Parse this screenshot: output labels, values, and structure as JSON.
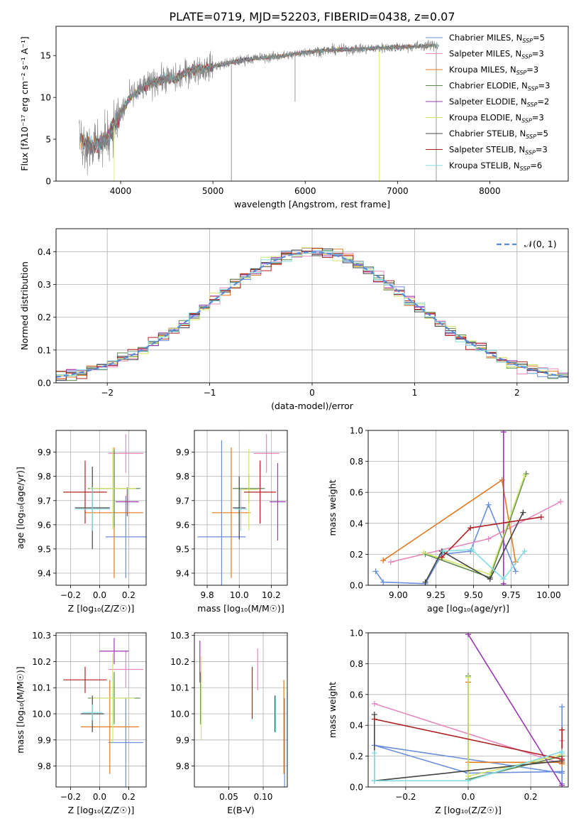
{
  "figure_title": "PLATE=0719, MJD=52203, FIBERID=0438, z=0.07",
  "models": [
    {
      "name": "Chabrier MILES",
      "nssp": "5",
      "color": "#6a8fdd"
    },
    {
      "name": "Salpeter MILES",
      "nssp": "3",
      "color": "#e589bf"
    },
    {
      "name": "Kroupa MILES",
      "nssp": "3",
      "color": "#e07b22"
    },
    {
      "name": "Chabrier ELODIE",
      "nssp": "3",
      "color": "#5e8a4f"
    },
    {
      "name": "Salpeter ELODIE",
      "nssp": "2",
      "color": "#9a3aae"
    },
    {
      "name": "Kroupa ELODIE",
      "nssp": "3",
      "color": "#d2e66e"
    },
    {
      "name": "Chabrier STELIB",
      "nssp": "5",
      "color": "#444444"
    },
    {
      "name": "Salpeter STELIB",
      "nssp": "3",
      "color": "#b02222"
    },
    {
      "name": "Kroupa STELIB",
      "nssp": "6",
      "color": "#82dde0"
    }
  ],
  "chart_data": [
    {
      "id": "spectrum",
      "type": "line",
      "title": "",
      "xlabel": "wavelength [Angstrom, rest frame]",
      "ylabel": "Flux [fλ10⁻¹⁷ erg cm⁻² s⁻¹ A⁻¹]",
      "xlim": [
        3300,
        8850
      ],
      "ylim": [
        0,
        18.5
      ],
      "xticks": [
        4000,
        5000,
        6000,
        7000,
        8000
      ],
      "yticks": [
        0,
        5,
        10,
        15
      ],
      "grid": false,
      "legend": "top-right",
      "continuum_x": [
        3550,
        3650,
        3800,
        3900,
        4000,
        4100,
        4200,
        4300,
        4400,
        4500,
        4600,
        4700,
        4800,
        4900,
        5000,
        5200,
        5400,
        5600,
        5800,
        6000,
        6200,
        6400,
        6600,
        6800,
        7000,
        7200,
        7400,
        7600,
        7800,
        8000,
        8200,
        8400,
        8600,
        8850
      ],
      "continuum_y": [
        5.2,
        4.2,
        4.5,
        6.0,
        8.0,
        10.0,
        10.8,
        11.5,
        12.0,
        12.3,
        12.2,
        12.9,
        13.3,
        13.4,
        13.7,
        14.2,
        14.6,
        14.8,
        15.0,
        15.4,
        15.6,
        15.7,
        15.8,
        15.9,
        16.0,
        16.1,
        16.2,
        16.3,
        16.4,
        16.4,
        16.4,
        16.4,
        16.5,
        16.5
      ],
      "data_color": "#808080"
    },
    {
      "id": "residuals",
      "type": "step",
      "title": "",
      "xlabel": "(data-model)/error",
      "ylabel": "Normed distribution",
      "xlim": [
        -2.5,
        2.5
      ],
      "ylim": [
        0,
        0.47
      ],
      "xticks": [
        -2,
        -1,
        0,
        1,
        2
      ],
      "yticks": [
        0.0,
        0.1,
        0.2,
        0.3,
        0.4
      ],
      "grid": true,
      "legend": "top-right",
      "reference_label": "𝒩(0, 1)",
      "reference_color": "#5b8bd8",
      "bin_width": 0.1
    },
    {
      "id": "age-vs-Z",
      "type": "errorbar",
      "xlabel": "Z [log₁₀(Z/Z☉)]",
      "ylabel": "age  [log₁₀(age/yr)]",
      "xlim": [
        -0.3,
        0.32
      ],
      "ylim": [
        9.35,
        9.99
      ],
      "xticks": [
        -0.2,
        0.0,
        0.2
      ],
      "yticks": [
        9.4,
        9.5,
        9.6,
        9.7,
        9.8,
        9.9
      ],
      "grid": true,
      "points": [
        {
          "model": 0,
          "x": 0.18,
          "y": 9.55,
          "xerr": 0.14,
          "yerr": 0.17
        },
        {
          "model": 1,
          "x": 0.18,
          "y": 9.895,
          "xerr": 0.12,
          "yerr": 0.08
        },
        {
          "model": 2,
          "x": 0.1,
          "y": 9.65,
          "xerr": 0.2,
          "yerr": 0.27
        },
        {
          "model": 3,
          "x": 0.1,
          "y": 9.75,
          "xerr": 0.18,
          "yerr": 0.16
        },
        {
          "model": 4,
          "x": 0.19,
          "y": 9.695,
          "xerr": 0.08,
          "yerr": 0.06
        },
        {
          "model": 5,
          "x": 0.09,
          "y": 9.75,
          "xerr": 0.16,
          "yerr": 0.17
        },
        {
          "model": 6,
          "x": -0.05,
          "y": 9.67,
          "xerr": 0.12,
          "yerr": 0.17
        },
        {
          "model": 7,
          "x": -0.1,
          "y": 9.735,
          "xerr": 0.15,
          "yerr": 0.13
        },
        {
          "model": 8,
          "x": -0.05,
          "y": 9.665,
          "xerr": 0.12,
          "yerr": 0.09
        }
      ]
    },
    {
      "id": "age-vs-mass",
      "type": "errorbar",
      "xlabel": "mass [log₁₀(M/M☉)]",
      "ylabel": "",
      "xlim": [
        9.72,
        10.3
      ],
      "ylim": [
        9.35,
        9.99
      ],
      "xticks": [
        9.8,
        10.0,
        10.2
      ],
      "yticks": [
        9.4,
        9.5,
        9.6,
        9.7,
        9.8,
        9.9
      ],
      "grid": true,
      "points": [
        {
          "model": 0,
          "x": 9.89,
          "y": 9.55,
          "xerr": 0.15,
          "yerr": 0.4
        },
        {
          "model": 1,
          "x": 10.17,
          "y": 9.895,
          "xerr": 0.08,
          "yerr": 0.08
        },
        {
          "model": 2,
          "x": 9.95,
          "y": 9.65,
          "xerr": 0.12,
          "yerr": 0.27
        },
        {
          "model": 3,
          "x": 10.06,
          "y": 9.75,
          "xerr": 0.1,
          "yerr": 0.06
        },
        {
          "model": 4,
          "x": 10.24,
          "y": 9.695,
          "xerr": 0.05,
          "yerr": 0.16
        },
        {
          "model": 5,
          "x": 10.06,
          "y": 9.745,
          "xerr": 0.06,
          "yerr": 0.17
        },
        {
          "model": 6,
          "x": 10.0,
          "y": 9.67,
          "xerr": 0.04,
          "yerr": 0.13
        },
        {
          "model": 7,
          "x": 10.13,
          "y": 9.735,
          "xerr": 0.1,
          "yerr": 0.13
        },
        {
          "model": 8,
          "x": 10.01,
          "y": 9.665,
          "xerr": 0.04,
          "yerr": 0.09
        }
      ]
    },
    {
      "id": "weight-vs-age",
      "type": "line",
      "xlabel": "age  [log₁₀(age/yr)]",
      "ylabel": "mass weight",
      "xlim": [
        8.8,
        10.13
      ],
      "ylim": [
        0,
        1.0
      ],
      "xticks": [
        9.0,
        9.25,
        9.5,
        9.75,
        10.0
      ],
      "xticklabels": [
        "9.00",
        "9.25",
        "9.50",
        "9.75",
        "10.00"
      ],
      "yticks": [
        0.0,
        0.2,
        0.4,
        0.6,
        0.8,
        1.0
      ],
      "grid": true,
      "series": [
        {
          "model": 0,
          "x": [
            8.85,
            8.9,
            9.18,
            9.29,
            9.48,
            9.6,
            9.78
          ],
          "y": [
            0.09,
            0.02,
            0.01,
            0.2,
            0.22,
            0.52,
            0.09
          ]
        },
        {
          "model": 1,
          "x": [
            8.95,
            9.6,
            10.08
          ],
          "y": [
            0.15,
            0.3,
            0.54
          ]
        },
        {
          "model": 2,
          "x": [
            8.9,
            9.69,
            9.78
          ],
          "y": [
            0.16,
            0.68,
            0.15
          ]
        },
        {
          "model": 3,
          "x": [
            9.18,
            9.61,
            9.85
          ],
          "y": [
            0.2,
            0.05,
            0.72
          ]
        },
        {
          "model": 4,
          "x": [
            9.7,
            9.7
          ],
          "y": [
            0.01,
            0.99
          ]
        },
        {
          "model": 5,
          "x": [
            9.17,
            9.61,
            9.84
          ],
          "y": [
            0.21,
            0.07,
            0.71
          ]
        },
        {
          "model": 6,
          "x": [
            9.18,
            9.29,
            9.61,
            9.83
          ],
          "y": [
            0.02,
            0.22,
            0.04,
            0.47
          ]
        },
        {
          "model": 7,
          "x": [
            9.29,
            9.48,
            9.95
          ],
          "y": [
            0.18,
            0.37,
            0.44
          ]
        },
        {
          "model": 8,
          "x": [
            9.3,
            9.49,
            9.7,
            9.84
          ],
          "y": [
            0.22,
            0.23,
            0.04,
            0.22
          ]
        }
      ]
    },
    {
      "id": "mass-vs-Z",
      "type": "errorbar",
      "xlabel": "Z [log₁₀(Z/Z☉)]",
      "ylabel": "mass [log₁₀(M/M☉)]",
      "xlim": [
        -0.3,
        0.32
      ],
      "ylim": [
        9.72,
        10.31
      ],
      "xticks": [
        -0.2,
        0.0,
        0.2
      ],
      "yticks": [
        9.8,
        9.9,
        10.0,
        10.1,
        10.2,
        10.3
      ],
      "grid": true,
      "points": [
        {
          "model": 0,
          "x": 0.18,
          "y": 9.89,
          "xerr": 0.12,
          "yerr": 0.17
        },
        {
          "model": 1,
          "x": 0.18,
          "y": 10.17,
          "xerr": 0.12,
          "yerr": 0.07
        },
        {
          "model": 2,
          "x": 0.07,
          "y": 9.95,
          "xerr": 0.2,
          "yerr": 0.18
        },
        {
          "model": 3,
          "x": 0.1,
          "y": 10.06,
          "xerr": 0.18,
          "yerr": 0.1
        },
        {
          "model": 4,
          "x": 0.1,
          "y": 10.24,
          "xerr": 0.1,
          "yerr": 0.05
        },
        {
          "model": 5,
          "x": 0.09,
          "y": 10.06,
          "xerr": 0.15,
          "yerr": 0.17
        },
        {
          "model": 6,
          "x": -0.05,
          "y": 10.0,
          "xerr": 0.08,
          "yerr": 0.07
        },
        {
          "model": 7,
          "x": -0.1,
          "y": 10.13,
          "xerr": 0.15,
          "yerr": 0.05
        },
        {
          "model": 8,
          "x": -0.05,
          "y": 10.005,
          "xerr": 0.07,
          "yerr": 0.03
        }
      ]
    },
    {
      "id": "mass-vs-ebv",
      "type": "errorbar",
      "xlabel": "E(B-V)",
      "ylabel": "",
      "xlim": [
        0.0,
        0.135
      ],
      "ylim": [
        9.72,
        10.31
      ],
      "xticks": [
        0.05,
        0.1
      ],
      "xticklabels": [
        "0.05",
        "0.10"
      ],
      "yticks": [
        9.8,
        9.9,
        10.0,
        10.1,
        10.2,
        10.3
      ],
      "grid": true,
      "points": [
        {
          "model": 0,
          "x": 0.131,
          "y": 9.89,
          "xerr": 0,
          "yerr": 0.17
        },
        {
          "model": 1,
          "x": 0.092,
          "y": 10.17,
          "xerr": 0,
          "yerr": 0.08
        },
        {
          "model": 2,
          "x": 0.13,
          "y": 9.95,
          "xerr": 0,
          "yerr": 0.18
        },
        {
          "model": 3,
          "x": 0.009,
          "y": 10.06,
          "xerr": 0,
          "yerr": 0.1
        },
        {
          "model": 4,
          "x": 0.008,
          "y": 10.2,
          "xerr": 0,
          "yerr": 0.08
        },
        {
          "model": 5,
          "x": 0.01,
          "y": 10.06,
          "xerr": 0,
          "yerr": 0.16
        },
        {
          "model": 6,
          "x": 0.117,
          "y": 10.0,
          "xerr": 0,
          "yerr": 0.07
        },
        {
          "model": 7,
          "x": 0.084,
          "y": 10.08,
          "xerr": 0,
          "yerr": 0.1
        },
        {
          "model": 8,
          "x": 0.118,
          "y": 10.0,
          "xerr": 0,
          "yerr": 0.07
        }
      ]
    },
    {
      "id": "weight-vs-Z",
      "type": "line",
      "xlabel": "Z [log₁₀(Z/Z☉)]",
      "ylabel": "mass weight",
      "xlim": [
        -0.32,
        0.32
      ],
      "ylim": [
        0,
        1.0
      ],
      "xticks": [
        -0.2,
        0.0,
        0.2
      ],
      "xticklabels": [
        "−0.2",
        "0.0",
        "0.2"
      ],
      "yticks": [
        0.0,
        0.2,
        0.4,
        0.6,
        0.8,
        1.0
      ],
      "grid": true,
      "series": [
        {
          "model": 0,
          "x": [
            0.3,
            0.3,
            -0.3,
            0.0,
            0.3,
            0.3
          ],
          "y": [
            0.52,
            0.09,
            0.27,
            0.09,
            0.1,
            0.02
          ]
        },
        {
          "model": 1,
          "x": [
            -0.3,
            0.3,
            0.3
          ],
          "y": [
            0.54,
            0.15,
            0.3
          ]
        },
        {
          "model": 2,
          "x": [
            0.0,
            0.0,
            0.3,
            0.3
          ],
          "y": [
            0.68,
            0.16,
            0.16,
            0.15
          ]
        },
        {
          "model": 3,
          "x": [
            0.0,
            0.0,
            0.3
          ],
          "y": [
            0.72,
            0.05,
            0.2
          ]
        },
        {
          "model": 4,
          "x": [
            0.0,
            0.3
          ],
          "y": [
            0.99,
            0.01
          ]
        },
        {
          "model": 5,
          "x": [
            0.0,
            0.0,
            0.3
          ],
          "y": [
            0.71,
            0.07,
            0.21
          ]
        },
        {
          "model": 6,
          "x": [
            -0.3,
            -0.3,
            0.3
          ],
          "y": [
            0.47,
            0.04,
            0.17
          ]
        },
        {
          "model": 7,
          "x": [
            -0.3,
            0.3,
            0.3
          ],
          "y": [
            0.44,
            0.18,
            0.37
          ]
        },
        {
          "model": 8,
          "x": [
            -0.3,
            -0.3,
            0.0,
            0.3,
            0.3
          ],
          "y": [
            0.22,
            0.04,
            0.04,
            0.23,
            0.22
          ]
        }
      ]
    }
  ]
}
